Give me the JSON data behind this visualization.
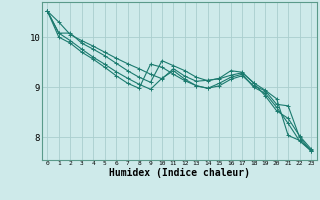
{
  "background_color": "#ceeaea",
  "grid_color": "#aacece",
  "line_color": "#1a7a6e",
  "xlabel": "Humidex (Indice chaleur)",
  "xlabel_fontsize": 7,
  "yticks": [
    8,
    9,
    10
  ],
  "xticks": [
    0,
    1,
    2,
    3,
    4,
    5,
    6,
    7,
    8,
    9,
    10,
    11,
    12,
    13,
    14,
    15,
    16,
    17,
    18,
    19,
    20,
    21,
    22,
    23
  ],
  "xlim": [
    -0.5,
    23.5
  ],
  "ylim": [
    7.55,
    10.7
  ],
  "series": [
    [
      10.52,
      10.3,
      10.05,
      9.93,
      9.82,
      9.7,
      9.58,
      9.47,
      9.37,
      9.26,
      9.17,
      9.37,
      9.22,
      9.12,
      9.14,
      9.17,
      9.24,
      9.29,
      9.09,
      8.94,
      8.77,
      8.04,
      7.94,
      7.74
    ],
    [
      10.52,
      10.08,
      10.08,
      9.88,
      9.76,
      9.63,
      9.48,
      9.33,
      9.2,
      9.1,
      9.53,
      9.43,
      9.33,
      9.2,
      9.13,
      9.18,
      9.33,
      9.3,
      9.08,
      8.83,
      8.53,
      8.38,
      8.03,
      7.77
    ],
    [
      10.52,
      10.08,
      9.93,
      9.76,
      9.6,
      9.46,
      9.31,
      9.18,
      9.06,
      8.96,
      9.18,
      9.33,
      9.16,
      9.03,
      8.98,
      9.08,
      9.2,
      9.26,
      9.0,
      8.88,
      8.6,
      8.28,
      7.93,
      7.73
    ],
    [
      10.52,
      10.0,
      9.88,
      9.7,
      9.56,
      9.4,
      9.23,
      9.08,
      8.98,
      9.46,
      9.4,
      9.26,
      9.13,
      9.03,
      8.98,
      9.03,
      9.16,
      9.23,
      9.03,
      8.93,
      8.66,
      8.63,
      8.0,
      7.73
    ]
  ]
}
